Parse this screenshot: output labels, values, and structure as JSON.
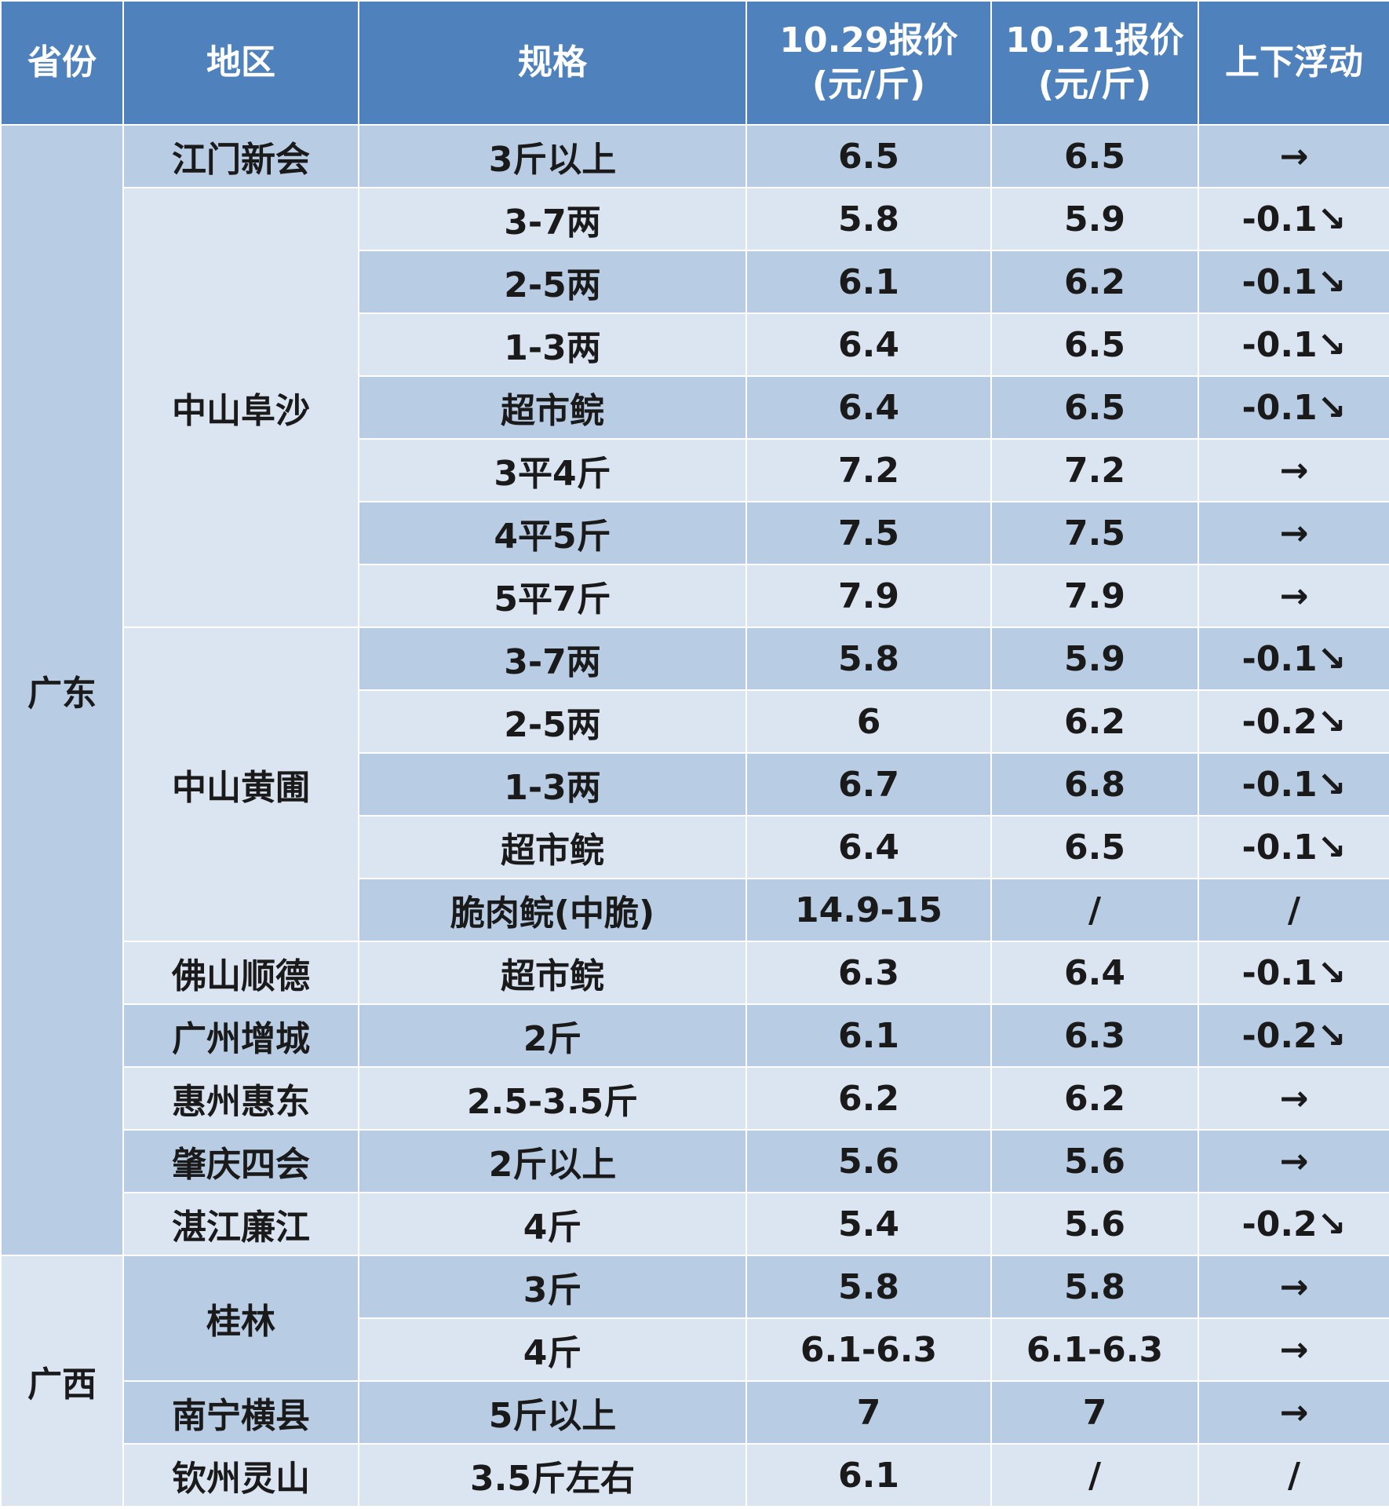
{
  "headers": {
    "province": "省份",
    "area": "地区",
    "spec": "规格",
    "price_1029_line1": "10.29报价",
    "price_1029_line2": "(元/斤)",
    "price_1021_line1": "10.21报价",
    "price_1021_line2": "(元/斤)",
    "change": "上下浮动"
  },
  "provinces": [
    {
      "name": "广东"
    },
    {
      "name": "广西"
    }
  ],
  "areas": [
    {
      "name": "江门新会"
    },
    {
      "name": "中山阜沙"
    },
    {
      "name": "中山黄圃"
    },
    {
      "name": "佛山顺德"
    },
    {
      "name": "广州增城"
    },
    {
      "name": "惠州惠东"
    },
    {
      "name": "肇庆四会"
    },
    {
      "name": "湛江廉江"
    },
    {
      "name": "桂林"
    },
    {
      "name": "南宁横县"
    },
    {
      "name": "钦州灵山"
    }
  ],
  "rows": [
    {
      "spec": "3斤以上",
      "p1029": "6.5",
      "p1021": "6.5",
      "change": "→"
    },
    {
      "spec": "3-7两",
      "p1029": "5.8",
      "p1021": "5.9",
      "change": "-0.1↘"
    },
    {
      "spec": "2-5两",
      "p1029": "6.1",
      "p1021": "6.2",
      "change": "-0.1↘"
    },
    {
      "spec": "1-3两",
      "p1029": "6.4",
      "p1021": "6.5",
      "change": "-0.1↘"
    },
    {
      "spec": "超市鲩",
      "p1029": "6.4",
      "p1021": "6.5",
      "change": "-0.1↘"
    },
    {
      "spec": "3平4斤",
      "p1029": "7.2",
      "p1021": "7.2",
      "change": "→"
    },
    {
      "spec": "4平5斤",
      "p1029": "7.5",
      "p1021": "7.5",
      "change": "→"
    },
    {
      "spec": "5平7斤",
      "p1029": "7.9",
      "p1021": "7.9",
      "change": "→"
    },
    {
      "spec": "3-7两",
      "p1029": "5.8",
      "p1021": "5.9",
      "change": "-0.1↘"
    },
    {
      "spec": "2-5两",
      "p1029": "6",
      "p1021": "6.2",
      "change": "-0.2↘"
    },
    {
      "spec": "1-3两",
      "p1029": "6.7",
      "p1021": "6.8",
      "change": "-0.1↘"
    },
    {
      "spec": "超市鲩",
      "p1029": "6.4",
      "p1021": "6.5",
      "change": "-0.1↘"
    },
    {
      "spec": "脆肉鲩(中脆)",
      "p1029": "14.9-15",
      "p1021": "/",
      "change": "/"
    },
    {
      "spec": "超市鲩",
      "p1029": "6.3",
      "p1021": "6.4",
      "change": "-0.1↘"
    },
    {
      "spec": "2斤",
      "p1029": "6.1",
      "p1021": "6.3",
      "change": "-0.2↘"
    },
    {
      "spec": "2.5-3.5斤",
      "p1029": "6.2",
      "p1021": "6.2",
      "change": "→"
    },
    {
      "spec": "2斤以上",
      "p1029": "5.6",
      "p1021": "5.6",
      "change": "→"
    },
    {
      "spec": "4斤",
      "p1029": "5.4",
      "p1021": "5.6",
      "change": "-0.2↘"
    },
    {
      "spec": "3斤",
      "p1029": "5.8",
      "p1021": "5.8",
      "change": "→"
    },
    {
      "spec": "4斤",
      "p1029": "6.1-6.3",
      "p1021": "6.1-6.3",
      "change": "→"
    },
    {
      "spec": "5斤以上",
      "p1029": "7",
      "p1021": "7",
      "change": "→"
    },
    {
      "spec": "3.5斤左右",
      "p1029": "6.1",
      "p1021": "/",
      "change": "/"
    }
  ],
  "colors": {
    "header_bg": "#4f81bd",
    "row_dark": "#b8cce4",
    "row_light": "#dbe5f1",
    "header_text": "#ffffff"
  }
}
